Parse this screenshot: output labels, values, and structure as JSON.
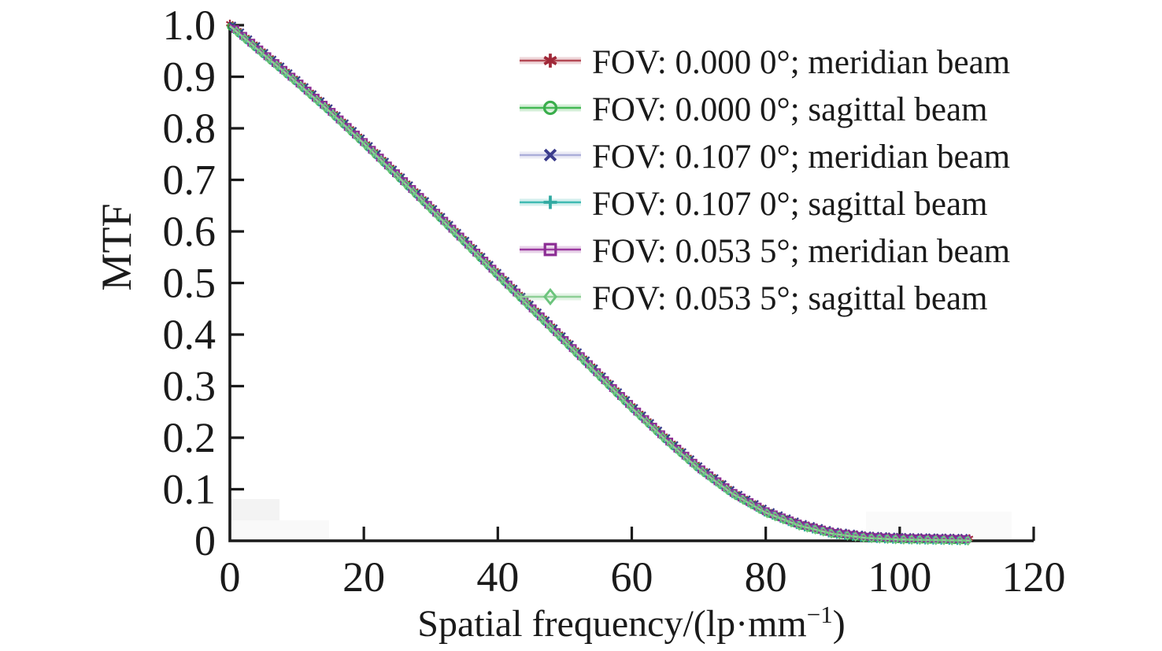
{
  "chart_data": {
    "type": "line",
    "title": "",
    "xlabel": "Spatial frequency/(lp·mm⁻¹)",
    "xlabel_parts": {
      "main": "Spatial frequency/(lp·mm",
      "sup": "−1",
      "close": ")"
    },
    "ylabel": "MTF",
    "xlim": [
      0,
      120
    ],
    "ylim": [
      0,
      1.0
    ],
    "x_ticks": [
      0,
      20,
      40,
      60,
      80,
      100,
      120
    ],
    "x_tick_labels": [
      "0",
      "20",
      "40",
      "60",
      "80",
      "100",
      "120"
    ],
    "y_ticks": [
      0,
      0.1,
      0.2,
      0.3,
      0.4,
      0.5,
      0.6,
      0.7,
      0.8,
      0.9,
      1.0
    ],
    "y_tick_labels": [
      "0",
      "0.1",
      "0.2",
      "0.3",
      "0.4",
      "0.5",
      "0.6",
      "0.7",
      "0.8",
      "0.9",
      "1.0"
    ],
    "grid": false,
    "legend_position": "upper-right-inside, no frame",
    "note": "All six curves coincide within marker width; shared MTF curve sampled every 5 lp/mm, data extends to ~110 lp/mm",
    "curve": {
      "x": [
        0,
        5,
        10,
        15,
        20,
        25,
        30,
        35,
        40,
        45,
        50,
        55,
        60,
        65,
        70,
        75,
        80,
        85,
        90,
        95,
        100,
        105,
        110
      ],
      "mtf": [
        1.0,
        0.945,
        0.89,
        0.833,
        0.772,
        0.709,
        0.645,
        0.581,
        0.516,
        0.452,
        0.388,
        0.323,
        0.259,
        0.198,
        0.141,
        0.093,
        0.056,
        0.031,
        0.015,
        0.007,
        0.004,
        0.003,
        0.002
      ]
    },
    "series": [
      {
        "label": "FOV: 0.000 0°; meridian beam",
        "marker": "asterisk",
        "line_color": "#b44a55",
        "marker_color": "#a02838"
      },
      {
        "label": "FOV: 0.000 0°; sagittal beam",
        "marker": "circle",
        "line_color": "#44b854",
        "marker_color": "#3aae4c"
      },
      {
        "label": "FOV: 0.107 0°; meridian beam",
        "marker": "x",
        "line_color": "#abaed9",
        "marker_color": "#3b3c8c"
      },
      {
        "label": "FOV: 0.107 0°; sagittal beam",
        "marker": "plus",
        "line_color": "#3fbab2",
        "marker_color": "#2fa9a1"
      },
      {
        "label": "FOV: 0.053 5°; meridian beam",
        "marker": "square",
        "line_color": "#9b3aa0",
        "marker_color": "#8c2d94"
      },
      {
        "label": "FOV: 0.053 5°; sagittal beam",
        "marker": "diamond",
        "line_color": "#8ecf96",
        "marker_color": "#6bc47c"
      }
    ],
    "axis_color": "#1a1a1a",
    "background_color": "#ffffff"
  }
}
